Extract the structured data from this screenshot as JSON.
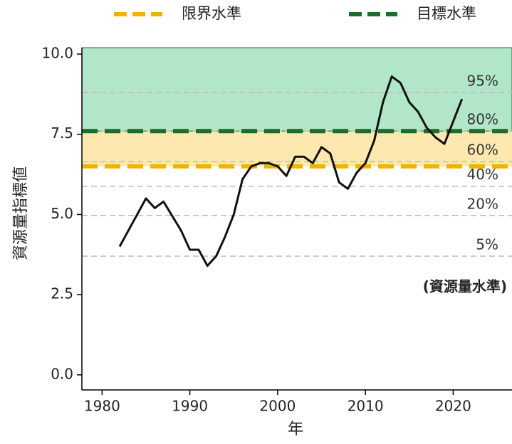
{
  "chart_data": {
    "type": "line",
    "x_label": "年",
    "y_label": "資源量指標値",
    "x": [
      1982,
      1983,
      1984,
      1985,
      1986,
      1987,
      1988,
      1989,
      1990,
      1991,
      1992,
      1993,
      1994,
      1995,
      1996,
      1997,
      1998,
      1999,
      2000,
      2001,
      2002,
      2003,
      2004,
      2005,
      2006,
      2007,
      2008,
      2009,
      2010,
      2011,
      2012,
      2013,
      2014,
      2015,
      2016,
      2017,
      2018,
      2019,
      2020,
      2021
    ],
    "values": [
      4.0,
      4.5,
      5.0,
      5.5,
      5.2,
      5.4,
      4.95,
      4.5,
      3.9,
      3.9,
      3.4,
      3.7,
      4.3,
      5.0,
      6.1,
      6.5,
      6.6,
      6.6,
      6.5,
      6.2,
      6.8,
      6.8,
      6.6,
      7.1,
      6.9,
      6.0,
      5.8,
      6.3,
      6.6,
      7.3,
      8.5,
      9.3,
      9.1,
      8.5,
      8.2,
      7.7,
      7.4,
      7.2,
      7.9,
      8.6
    ],
    "color": "#111111",
    "xlim": [
      1977.7,
      2026.7
    ],
    "ylim": [
      -0.47,
      10.2
    ],
    "xticks": [
      1980,
      1990,
      2000,
      2010,
      2020
    ],
    "yticks": [
      {
        "value": 0,
        "label": "0.0"
      },
      {
        "value": 2.5,
        "label": "2.5"
      },
      {
        "value": 5,
        "label": "5.0"
      },
      {
        "value": 7.5,
        "label": "7.5"
      },
      {
        "value": 10,
        "label": "10.0"
      }
    ],
    "reference_lines": [
      {
        "name": "限界水準",
        "value": 6.5,
        "color": "#f0b400",
        "band_color": "#fde9b0"
      },
      {
        "name": "目標水準",
        "value": 7.6,
        "color": "#1e6b2a",
        "band_color": "#b2e6c8"
      }
    ],
    "percentile_lines": [
      {
        "label": "95%",
        "value": 8.8
      },
      {
        "label": "80%",
        "value": 7.6
      },
      {
        "label": "60%",
        "value": 6.65
      },
      {
        "label": "40%",
        "value": 5.88
      },
      {
        "label": "20%",
        "value": 4.97
      },
      {
        "label": "5%",
        "value": 3.7
      }
    ],
    "annotation": "(資源量水準)"
  }
}
